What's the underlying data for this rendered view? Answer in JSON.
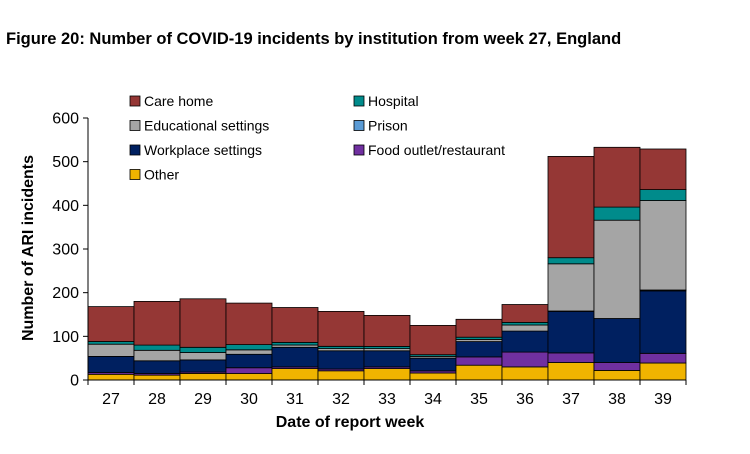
{
  "figure": {
    "title": "Figure 20: Number of COVID-19 incidents by institution from week 27, England"
  },
  "chart_data": {
    "type": "bar",
    "stacked": true,
    "xlabel": "Date of report week",
    "ylabel": "Number of ARI incidents",
    "ylim": [
      0,
      600
    ],
    "yticks": [
      0,
      100,
      200,
      300,
      400,
      500,
      600
    ],
    "grid": false,
    "legend_position": "top-left",
    "categories": [
      "27",
      "28",
      "29",
      "30",
      "31",
      "32",
      "33",
      "34",
      "35",
      "36",
      "37",
      "38",
      "39"
    ],
    "series": [
      {
        "name": "Other",
        "color": "#F0B400",
        "values": [
          13,
          11,
          15,
          15,
          26,
          21,
          26,
          16,
          34,
          30,
          40,
          22,
          39
        ]
      },
      {
        "name": "Food outlet/restaurant",
        "color": "#7030A0",
        "values": [
          4,
          4,
          3,
          13,
          4,
          4,
          4,
          5,
          19,
          34,
          22,
          18,
          22
        ]
      },
      {
        "name": "Workplace settings",
        "color": "#002060",
        "values": [
          37,
          29,
          28,
          31,
          45,
          42,
          37,
          29,
          35,
          48,
          95,
          101,
          143
        ]
      },
      {
        "name": "Prison",
        "color": "#5B9BD5",
        "values": [
          0,
          0,
          0,
          0,
          0,
          0,
          0,
          0,
          0,
          0,
          1,
          0,
          2
        ]
      },
      {
        "name": "Educational settings",
        "color": "#A5A5A5",
        "values": [
          28,
          24,
          17,
          10,
          5,
          5,
          5,
          4,
          5,
          14,
          108,
          225,
          205
        ]
      },
      {
        "name": "Hospital",
        "color": "#008B8B",
        "values": [
          6,
          12,
          12,
          12,
          6,
          5,
          5,
          4,
          5,
          6,
          14,
          30,
          25
        ]
      },
      {
        "name": "Care home",
        "color": "#953735",
        "values": [
          80,
          100,
          111,
          95,
          80,
          80,
          71,
          67,
          41,
          41,
          232,
          137,
          93
        ]
      }
    ],
    "legend": [
      {
        "name": "Care home",
        "color": "#953735"
      },
      {
        "name": "Hospital",
        "color": "#008B8B"
      },
      {
        "name": "Educational settings",
        "color": "#A5A5A5"
      },
      {
        "name": "Prison",
        "color": "#5B9BD5"
      },
      {
        "name": "Workplace settings",
        "color": "#002060"
      },
      {
        "name": "Food outlet/restaurant",
        "color": "#7030A0"
      },
      {
        "name": "Other",
        "color": "#F0B400"
      }
    ]
  }
}
